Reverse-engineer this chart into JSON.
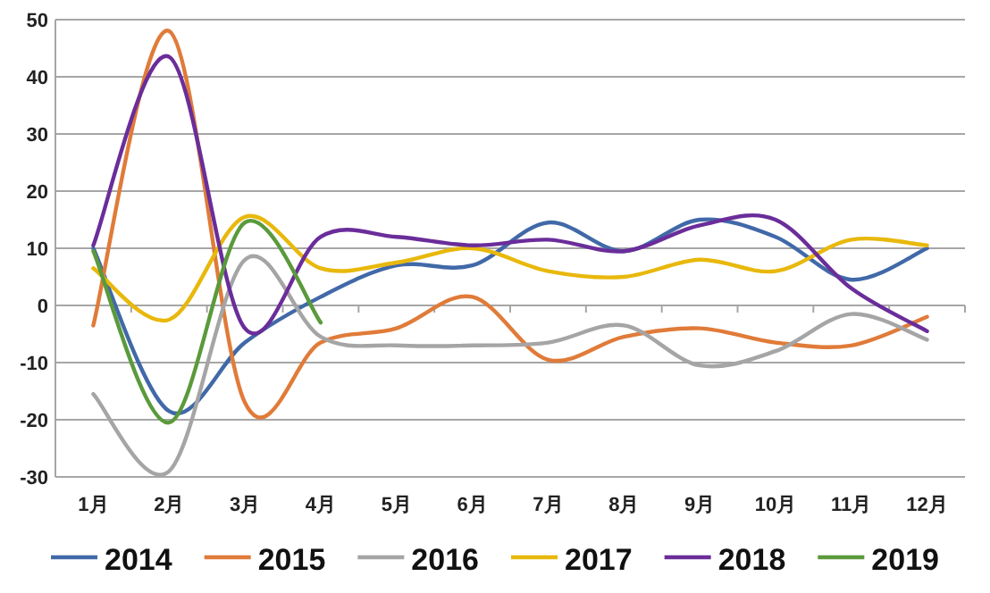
{
  "chart_data": {
    "type": "line",
    "categories": [
      "1月",
      "2月",
      "3月",
      "4月",
      "5月",
      "6月",
      "7月",
      "8月",
      "9月",
      "10月",
      "11月",
      "12月"
    ],
    "series": [
      {
        "name": "2014",
        "color": "#4169a8",
        "values": [
          10,
          -18.5,
          -6.5,
          1.5,
          7,
          7,
          14.5,
          9.5,
          15,
          12,
          4.5,
          10
        ]
      },
      {
        "name": "2015",
        "color": "#e07b39",
        "values": [
          -3.5,
          48,
          -17,
          -6.5,
          -4,
          1.5,
          -9.5,
          -5.5,
          -4,
          -6.5,
          -7,
          -2
        ]
      },
      {
        "name": "2016",
        "color": "#a5a5a5",
        "values": [
          -15.5,
          -29,
          8,
          -5.5,
          -7,
          -7,
          -6.5,
          -3.5,
          -10.5,
          -8,
          -1.5,
          -6
        ]
      },
      {
        "name": "2017",
        "color": "#e8b80c",
        "values": [
          6.5,
          -2.5,
          15.5,
          6.5,
          7.5,
          10,
          6,
          5,
          8,
          6,
          11.5,
          10.5
        ]
      },
      {
        "name": "2018",
        "color": "#6a2d9a",
        "values": [
          10.5,
          43.5,
          -4,
          12,
          12,
          10.5,
          11.5,
          9.5,
          14,
          15,
          3,
          -4.5
        ]
      },
      {
        "name": "2019",
        "color": "#5a9a3c",
        "values": [
          9.5,
          -20.5,
          14.5,
          -3,
          null,
          null,
          null,
          null,
          null,
          null,
          null,
          null
        ]
      }
    ],
    "ylim": [
      -30,
      50
    ],
    "yticks": [
      -30,
      -20,
      -10,
      0,
      10,
      20,
      30,
      40,
      50
    ],
    "grid": "y",
    "legend": "bottom"
  }
}
